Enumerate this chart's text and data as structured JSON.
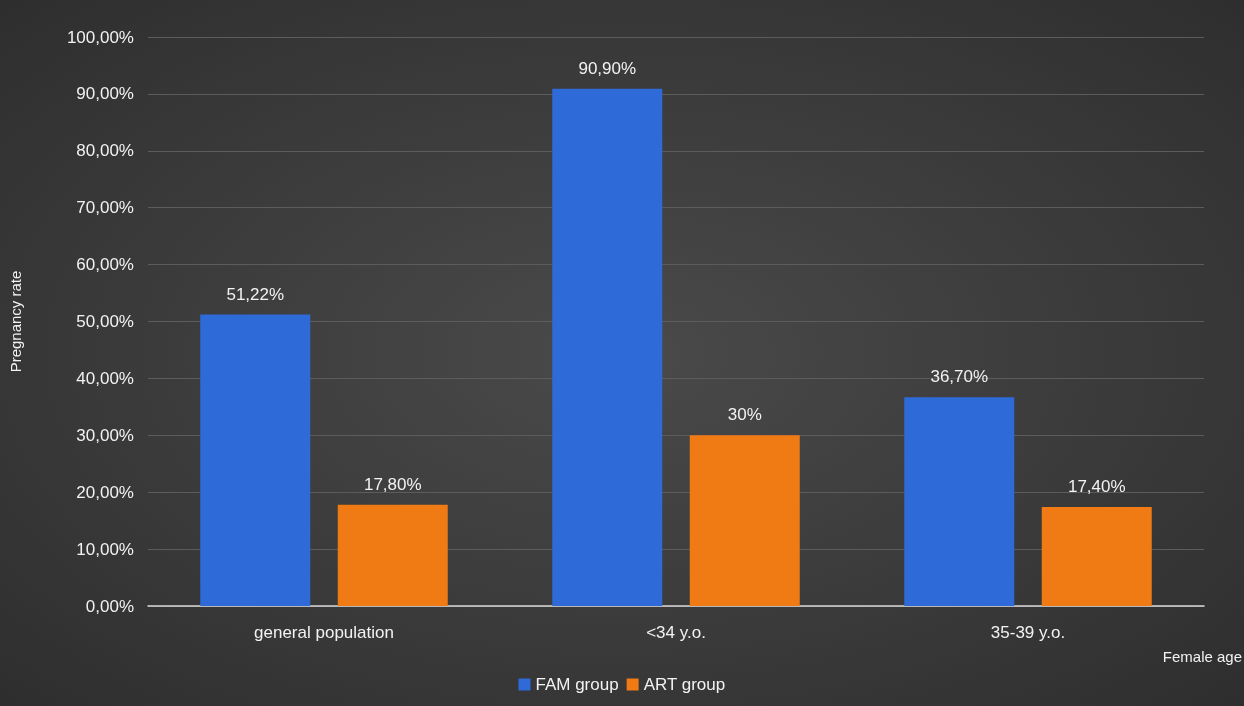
{
  "chart_data": {
    "type": "bar",
    "xlabel": "Female age",
    "ylabel": "Pregnancy rate",
    "categories": [
      "general population",
      "<34 y.o.",
      "35-39 y.o."
    ],
    "series": [
      {
        "name": "FAM group",
        "color": "#2e6ad8",
        "values": [
          51.22,
          90.9,
          36.7
        ],
        "value_labels": [
          "51,22%",
          "90,90%",
          "36,70%"
        ]
      },
      {
        "name": "ART group",
        "color": "#f07a14",
        "values": [
          17.8,
          30,
          17.4
        ],
        "value_labels": [
          "17,80%",
          "30%",
          "17,40%"
        ]
      }
    ],
    "ylim": [
      0,
      100
    ],
    "yticks": [
      {
        "value": 0,
        "label": "0,00%"
      },
      {
        "value": 10,
        "label": "10,00%"
      },
      {
        "value": 20,
        "label": "20,00%"
      },
      {
        "value": 30,
        "label": "30,00%"
      },
      {
        "value": 40,
        "label": "40,00%"
      },
      {
        "value": 50,
        "label": "50,00%"
      },
      {
        "value": 60,
        "label": "60,00%"
      },
      {
        "value": 70,
        "label": "70,00%"
      },
      {
        "value": 80,
        "label": "80,00%"
      },
      {
        "value": 90,
        "label": "90,00%"
      },
      {
        "value": 100,
        "label": "100,00%"
      }
    ],
    "grid": "y",
    "legend": "bottom"
  }
}
